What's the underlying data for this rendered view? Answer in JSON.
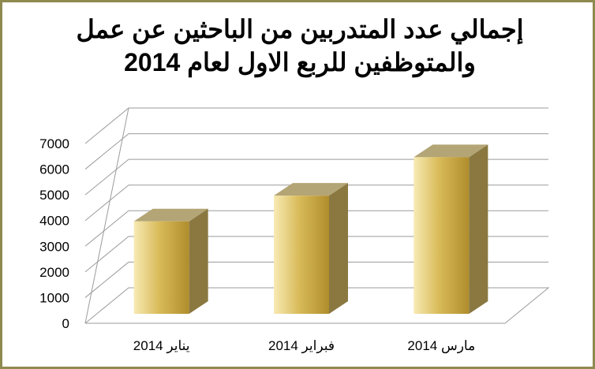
{
  "title_lines": [
    "إجمالي عدد المتدربين من الباحثين عن عمل",
    "والمتوظفين للربع الاول لعام 2014"
  ],
  "chart_data": {
    "type": "bar",
    "style": "3d-column",
    "title": "إجمالي عدد المتدربين من الباحثين عن عمل والمتوظفين للربع الاول لعام 2014",
    "categories": [
      "يناير 2014",
      "فبراير 2014",
      "مارس 2014"
    ],
    "values": [
      3600,
      4600,
      6100
    ],
    "ylim": [
      0,
      7000
    ],
    "yticks": [
      0,
      1000,
      2000,
      3000,
      4000,
      5000,
      6000,
      7000
    ],
    "grid": true,
    "legend": "none",
    "colors": {
      "bar_front_light": "#f7eab4",
      "bar_front_mid": "#d9bb5a",
      "bar_front_dark": "#b08d2c",
      "bar_side": "#8a7840",
      "bar_top": "#b3a575",
      "grid": "#9b9b9b",
      "frame_border": "#8f8a50"
    }
  }
}
